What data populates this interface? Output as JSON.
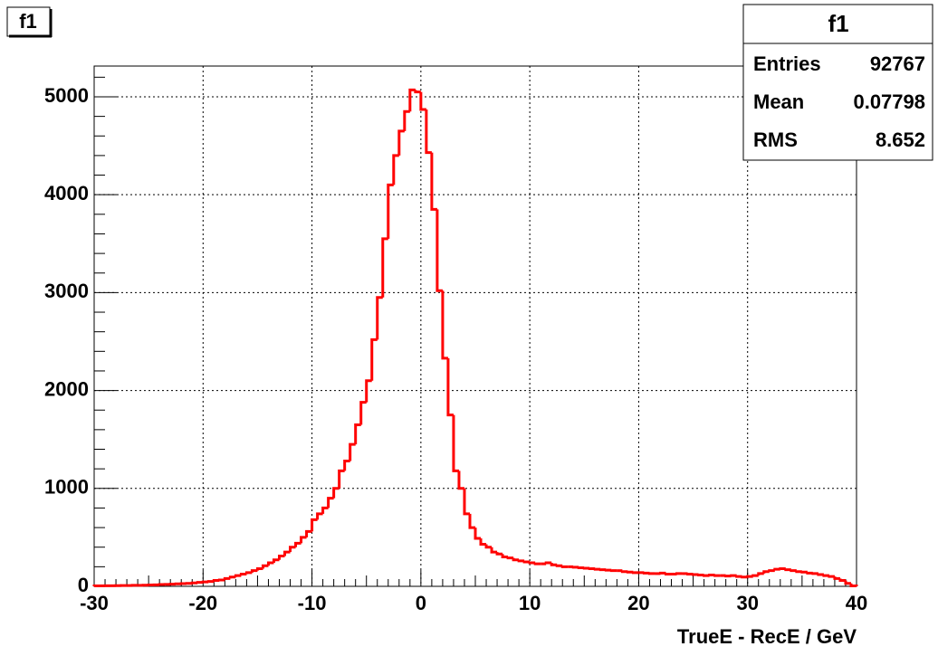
{
  "chart_data": {
    "type": "histogram",
    "title": "f1",
    "x_label": "TrueE - RecE / GeV",
    "color": "#ff0000",
    "grid": true,
    "xlim": [
      -30,
      40
    ],
    "xticks": [
      -30,
      -20,
      -10,
      0,
      10,
      20,
      30,
      40
    ],
    "ylim": [
      0,
      5314
    ],
    "yticks": [
      0,
      1000,
      2000,
      3000,
      4000,
      5000
    ],
    "bins": [
      -30,
      -29.5,
      -29,
      -28.5,
      -28,
      -27.5,
      -27,
      -26.5,
      -26,
      -25.5,
      -25,
      -24.5,
      -24,
      -23.5,
      -23,
      -22.5,
      -22,
      -21.5,
      -21,
      -20.5,
      -20,
      -19.5,
      -19,
      -18.5,
      -18,
      -17.5,
      -17,
      -16.5,
      -16,
      -15.5,
      -15,
      -14.5,
      -14,
      -13.5,
      -13,
      -12.5,
      -12,
      -11.5,
      -11,
      -10.5,
      -10,
      -9.5,
      -9,
      -8.5,
      -8,
      -7.5,
      -7,
      -6.5,
      -6,
      -5.5,
      -5,
      -4.5,
      -4,
      -3.5,
      -3,
      -2.5,
      -2,
      -1.5,
      -1,
      -0.5,
      0,
      0.5,
      1,
      1.5,
      2,
      2.5,
      3,
      3.5,
      4,
      4.5,
      5,
      5.5,
      6,
      6.5,
      7,
      7.5,
      8,
      8.5,
      9,
      9.5,
      10,
      10.5,
      11,
      11.5,
      12,
      12.5,
      13,
      13.5,
      14,
      14.5,
      15,
      15.5,
      16,
      16.5,
      17,
      17.5,
      18,
      18.5,
      19,
      19.5,
      20,
      20.5,
      21,
      21.5,
      22,
      22.5,
      23,
      23.5,
      24,
      24.5,
      25,
      25.5,
      26,
      26.5,
      27,
      27.5,
      28,
      28.5,
      29,
      29.5,
      30,
      30.5,
      31,
      31.5,
      32,
      32.5,
      33,
      33.5,
      34,
      34.5,
      35,
      35.5,
      36,
      36.5,
      37,
      37.5,
      38,
      38.5,
      39,
      39.5,
      40
    ],
    "values": [
      5,
      5,
      6,
      6,
      7,
      8,
      8,
      10,
      10,
      12,
      14,
      15,
      18,
      20,
      22,
      25,
      28,
      30,
      35,
      40,
      45,
      50,
      60,
      65,
      80,
      95,
      110,
      125,
      140,
      160,
      180,
      210,
      240,
      270,
      310,
      350,
      400,
      440,
      500,
      560,
      680,
      740,
      800,
      900,
      1000,
      1180,
      1280,
      1450,
      1650,
      1880,
      2100,
      2520,
      2950,
      3550,
      4100,
      4400,
      4650,
      4850,
      5070,
      5050,
      4870,
      4430,
      3850,
      3020,
      2330,
      1750,
      1180,
      1000,
      740,
      600,
      490,
      430,
      400,
      350,
      330,
      300,
      290,
      270,
      260,
      250,
      240,
      230,
      230,
      240,
      220,
      210,
      200,
      200,
      195,
      190,
      185,
      180,
      175,
      170,
      165,
      160,
      160,
      150,
      145,
      140,
      140,
      135,
      130,
      130,
      135,
      125,
      125,
      130,
      130,
      125,
      120,
      115,
      110,
      115,
      110,
      110,
      105,
      110,
      100,
      95,
      100,
      110,
      130,
      150,
      160,
      175,
      180,
      170,
      160,
      150,
      145,
      135,
      130,
      120,
      110,
      100,
      80,
      60,
      30,
      5
    ],
    "stats": {
      "title": "f1",
      "rows": [
        [
          "Entries",
          "92767"
        ],
        [
          "Mean",
          "0.07798"
        ],
        [
          "RMS",
          "8.652"
        ]
      ]
    }
  }
}
